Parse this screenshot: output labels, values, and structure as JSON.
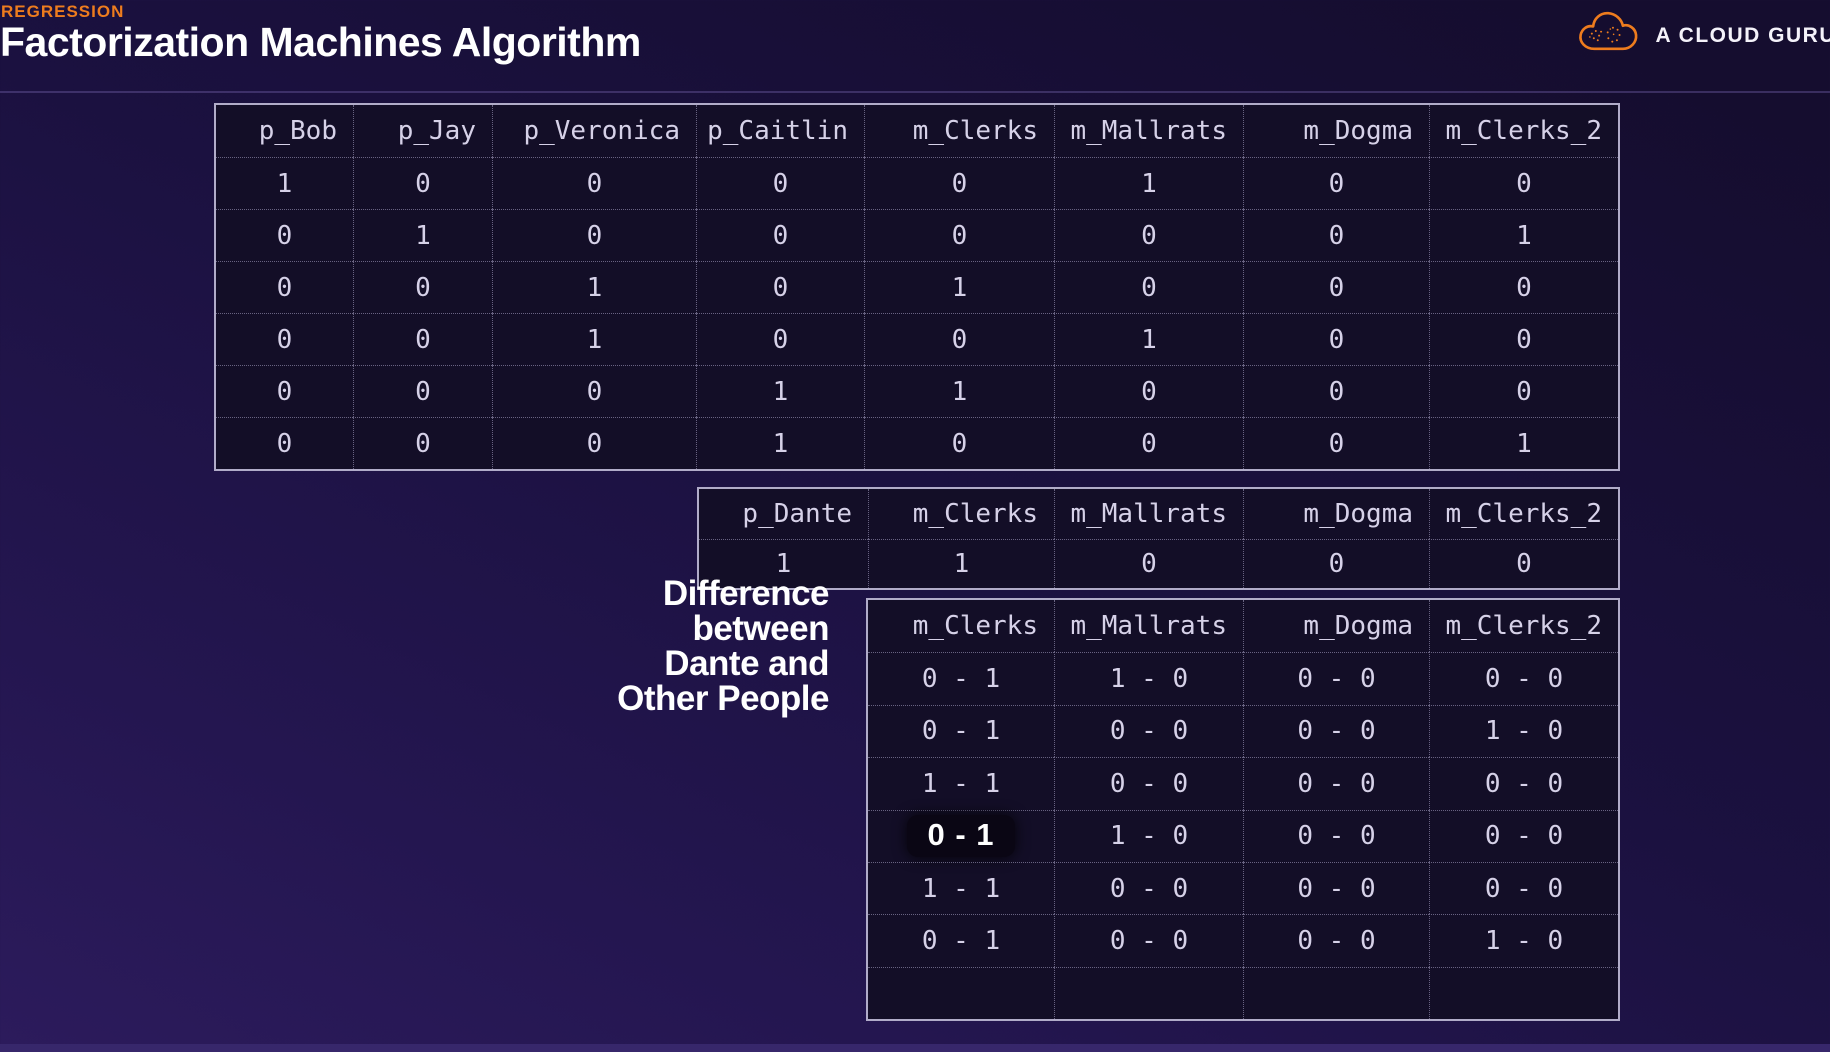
{
  "header": {
    "eyebrow": "REGRESSION",
    "title": "Factorization Machines Algorithm",
    "brand": "A CLOUD GURU"
  },
  "colors": {
    "accent_orange": "#ee7c1e",
    "background_top": "#150d2f",
    "background_bottom": "#2c1b5c",
    "table_background": "#130e27",
    "table_text": "#d6d1e8",
    "title_text": "#ffffff",
    "highlight_pill_background": "#0a0614"
  },
  "people_table": {
    "columns": [
      "p_Bob",
      "p_Jay",
      "p_Veronica",
      "p_Caitlin",
      "m_Clerks",
      "m_Mallrats",
      "m_Dogma",
      "m_Clerks_2"
    ],
    "rows": [
      [
        "1",
        "0",
        "0",
        "0",
        "0",
        "1",
        "0",
        "0"
      ],
      [
        "0",
        "1",
        "0",
        "0",
        "0",
        "0",
        "0",
        "1"
      ],
      [
        "0",
        "0",
        "1",
        "0",
        "1",
        "0",
        "0",
        "0"
      ],
      [
        "0",
        "0",
        "1",
        "0",
        "0",
        "1",
        "0",
        "0"
      ],
      [
        "0",
        "0",
        "0",
        "1",
        "1",
        "0",
        "0",
        "0"
      ],
      [
        "0",
        "0",
        "0",
        "1",
        "0",
        "0",
        "0",
        "1"
      ]
    ]
  },
  "dante_table": {
    "columns": [
      "p_Dante",
      "m_Clerks",
      "m_Mallrats",
      "m_Dogma",
      "m_Clerks_2"
    ],
    "rows": [
      [
        "1",
        "1",
        "0",
        "0",
        "0"
      ]
    ]
  },
  "difference_label": {
    "lines": [
      "Difference",
      "between",
      "Dante and",
      "Other People"
    ]
  },
  "difference_table": {
    "columns": [
      "m_Clerks",
      "m_Mallrats",
      "m_Dogma",
      "m_Clerks_2"
    ],
    "rows": [
      [
        "0 - 1",
        "1 - 0",
        "0 - 0",
        "0 - 0"
      ],
      [
        "0 - 1",
        "0 - 0",
        "0 - 0",
        "1 - 0"
      ],
      [
        "1 - 1",
        "0 - 0",
        "0 - 0",
        "0 - 0"
      ],
      [
        "0 - 1",
        "1 - 0",
        "0 - 0",
        "0 - 0"
      ],
      [
        "1 - 1",
        "0 - 0",
        "0 - 0",
        "0 - 0"
      ],
      [
        "0 - 1",
        "0 - 0",
        "0 - 0",
        "1 - 0"
      ],
      [
        "",
        "",
        "",
        ""
      ]
    ],
    "highlight": {
      "row": 3,
      "col": 0
    }
  }
}
